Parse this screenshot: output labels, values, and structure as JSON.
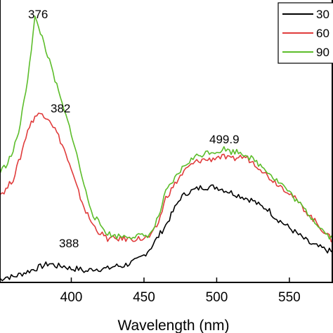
{
  "chart_data": {
    "type": "line",
    "xlabel": "Wavelength (nm)",
    "ylabel": "",
    "xlim": [
      350,
      580
    ],
    "ylim": [
      0,
      100
    ],
    "x_ticks": [
      400,
      450,
      500,
      550
    ],
    "legend": {
      "placement": "top-right",
      "entries": [
        "30",
        "60",
        "90"
      ]
    },
    "annotations": [
      {
        "text": "376",
        "x": 376,
        "y": 98
      },
      {
        "text": "382",
        "x": 382,
        "y": 62
      },
      {
        "text": "499.9",
        "x": 499.9,
        "y": 48
      },
      {
        "text": "388",
        "x": 388,
        "y": 9
      }
    ],
    "series": [
      {
        "name": "30",
        "color": "#000000",
        "x": [
          350,
          355,
          360,
          365,
          370,
          375,
          380,
          385,
          390,
          395,
          400,
          405,
          410,
          415,
          420,
          425,
          430,
          435,
          440,
          445,
          450,
          455,
          460,
          465,
          470,
          475,
          480,
          485,
          490,
          495,
          500,
          505,
          510,
          515,
          520,
          525,
          530,
          535,
          540,
          545,
          550,
          555,
          560,
          565,
          570,
          575,
          580
        ],
        "y": [
          1,
          2,
          2,
          3,
          4,
          5,
          6,
          7,
          6,
          6,
          5,
          5,
          4,
          5,
          5,
          5,
          6,
          6,
          7,
          8,
          10,
          13,
          17,
          21,
          26,
          31,
          33,
          34,
          35,
          35,
          35,
          34,
          33,
          32,
          31,
          30,
          28,
          27,
          24,
          22,
          20,
          18,
          16,
          14,
          13,
          12,
          11
        ]
      },
      {
        "name": "60",
        "color": "#e03c3c",
        "x": [
          350,
          355,
          360,
          365,
          370,
          375,
          380,
          385,
          390,
          395,
          400,
          405,
          410,
          415,
          420,
          425,
          430,
          435,
          440,
          445,
          450,
          455,
          460,
          465,
          470,
          475,
          480,
          485,
          490,
          495,
          500,
          505,
          510,
          515,
          520,
          525,
          530,
          535,
          540,
          545,
          550,
          555,
          560,
          565,
          570,
          575,
          580
        ],
        "y": [
          32,
          34,
          38,
          46,
          56,
          61,
          62,
          60,
          55,
          49,
          41,
          33,
          26,
          21,
          18,
          16,
          16,
          16,
          16,
          16,
          16,
          17,
          22,
          31,
          35,
          39,
          42,
          44,
          45,
          45,
          46,
          46,
          45,
          46,
          46,
          44,
          42,
          39,
          37,
          35,
          33,
          30,
          27,
          24,
          21,
          18,
          15
        ]
      },
      {
        "name": "90",
        "color": "#5cbd2a",
        "x": [
          350,
          355,
          360,
          365,
          370,
          375,
          380,
          385,
          390,
          395,
          400,
          405,
          410,
          415,
          420,
          425,
          430,
          435,
          440,
          445,
          450,
          455,
          460,
          465,
          470,
          475,
          480,
          485,
          490,
          495,
          500,
          505,
          510,
          515,
          520,
          525,
          530,
          535,
          540,
          545,
          550,
          555,
          560,
          565,
          570,
          575,
          580
        ],
        "y": [
          40,
          43,
          48,
          58,
          75,
          97,
          90,
          81,
          72,
          63,
          55,
          44,
          33,
          25,
          21,
          18,
          17,
          17,
          17,
          17,
          17,
          18,
          24,
          33,
          37,
          41,
          44,
          46,
          47,
          48,
          48,
          49,
          48,
          48,
          47,
          45,
          43,
          41,
          38,
          36,
          33,
          30,
          27,
          24,
          21,
          18,
          16
        ]
      }
    ]
  }
}
